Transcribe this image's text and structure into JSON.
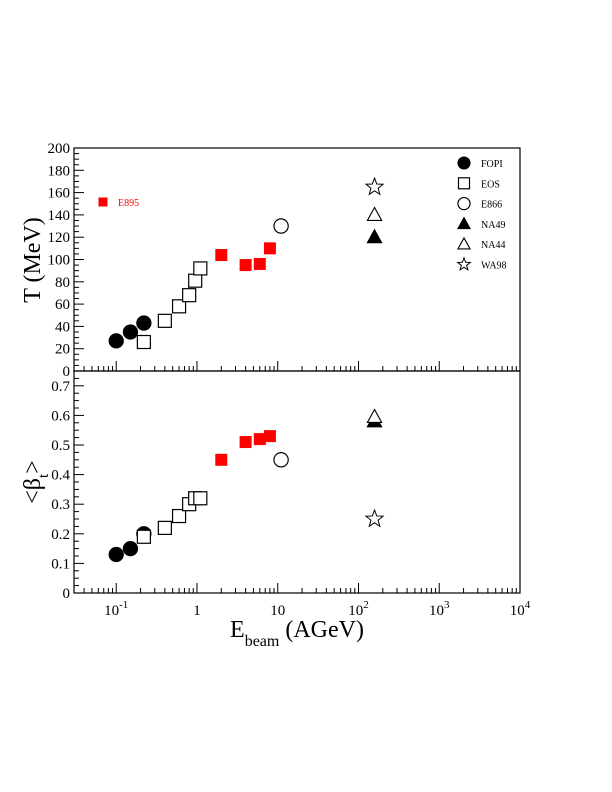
{
  "chart_data": [
    {
      "type": "scatter",
      "panel": "top",
      "ylabel": "T (MeV)",
      "xscale": "log",
      "xlim": [
        0.03,
        10000
      ],
      "ylim": [
        0,
        200
      ],
      "yticks": [
        "0",
        "20",
        "40",
        "60",
        "80",
        "100",
        "120",
        "140",
        "160",
        "180",
        "200"
      ],
      "series": [
        {
          "name": "FOPI",
          "marker": "filled-circle",
          "color": "#000000",
          "points": [
            [
              0.1,
              27
            ],
            [
              0.15,
              35
            ],
            [
              0.22,
              43
            ]
          ]
        },
        {
          "name": "EOS",
          "marker": "open-square",
          "color": "#000000",
          "points": [
            [
              0.22,
              26
            ],
            [
              0.4,
              45
            ],
            [
              0.6,
              58
            ],
            [
              0.8,
              68
            ],
            [
              0.95,
              81
            ],
            [
              1.1,
              92
            ]
          ]
        },
        {
          "name": "E866",
          "marker": "open-circle",
          "color": "#000000",
          "points": [
            [
              11,
              130
            ]
          ]
        },
        {
          "name": "NA49",
          "marker": "filled-triangle",
          "color": "#000000",
          "points": [
            [
              158,
              120
            ]
          ]
        },
        {
          "name": "NA44",
          "marker": "open-triangle",
          "color": "#000000",
          "points": [
            [
              158,
              140
            ]
          ]
        },
        {
          "name": "WA98",
          "marker": "open-star",
          "color": "#000000",
          "points": [
            [
              158,
              165
            ]
          ]
        },
        {
          "name": "E895",
          "marker": "filled-square",
          "color": "#ff0000",
          "points": [
            [
              2,
              104
            ],
            [
              4,
              95
            ],
            [
              6,
              96
            ],
            [
              8,
              110
            ]
          ]
        }
      ],
      "legend": {
        "placement": "top-right",
        "entries": [
          {
            "label": "FOPI",
            "marker": "filled-circle"
          },
          {
            "label": "EOS",
            "marker": "open-square"
          },
          {
            "label": "E866",
            "marker": "open-circle"
          },
          {
            "label": "NA49",
            "marker": "filled-triangle"
          },
          {
            "label": "NA44",
            "marker": "open-triangle"
          },
          {
            "label": "WA98",
            "marker": "open-star"
          }
        ],
        "extra": {
          "label": "E895",
          "marker": "filled-square",
          "color": "#ff0000",
          "placement": "top-left"
        }
      }
    },
    {
      "type": "scatter",
      "panel": "bottom",
      "ylabel": "<βt>",
      "xlabel": "Ebeam (AGeV)",
      "xscale": "log",
      "xlim": [
        0.03,
        10000
      ],
      "ylim": [
        0,
        0.75
      ],
      "yticks": [
        "0",
        "0.1",
        "0.2",
        "0.3",
        "0.4",
        "0.5",
        "0.6",
        "0.7"
      ],
      "xticks": [
        {
          "base": "10",
          "exp": "-1",
          "value": 0.1
        },
        {
          "base": "1",
          "exp": "",
          "value": 1
        },
        {
          "base": "10",
          "exp": "",
          "value": 10
        },
        {
          "base": "10",
          "exp": "2",
          "value": 100
        },
        {
          "base": "10",
          "exp": "3",
          "value": 1000
        },
        {
          "base": "10",
          "exp": "4",
          "value": 10000
        }
      ],
      "series": [
        {
          "name": "FOPI",
          "marker": "filled-circle",
          "color": "#000000",
          "points": [
            [
              0.1,
              0.13
            ],
            [
              0.15,
              0.15
            ],
            [
              0.22,
              0.2
            ]
          ]
        },
        {
          "name": "EOS",
          "marker": "open-square",
          "color": "#000000",
          "points": [
            [
              0.22,
              0.19
            ],
            [
              0.4,
              0.22
            ],
            [
              0.6,
              0.26
            ],
            [
              0.8,
              0.3
            ],
            [
              0.95,
              0.32
            ],
            [
              1.1,
              0.32
            ]
          ]
        },
        {
          "name": "E866",
          "marker": "open-circle",
          "color": "#000000",
          "points": [
            [
              11,
              0.45
            ]
          ]
        },
        {
          "name": "NA49",
          "marker": "filled-triangle",
          "color": "#000000",
          "points": [
            [
              158,
              0.58
            ]
          ]
        },
        {
          "name": "NA44",
          "marker": "open-triangle",
          "color": "#000000",
          "points": [
            [
              158,
              0.595
            ]
          ]
        },
        {
          "name": "WA98",
          "marker": "open-star",
          "color": "#000000",
          "points": [
            [
              158,
              0.25
            ]
          ]
        },
        {
          "name": "E895",
          "marker": "filled-square",
          "color": "#ff0000",
          "points": [
            [
              2,
              0.45
            ],
            [
              4,
              0.51
            ],
            [
              6,
              0.52
            ],
            [
              8,
              0.53
            ]
          ]
        }
      ]
    }
  ]
}
